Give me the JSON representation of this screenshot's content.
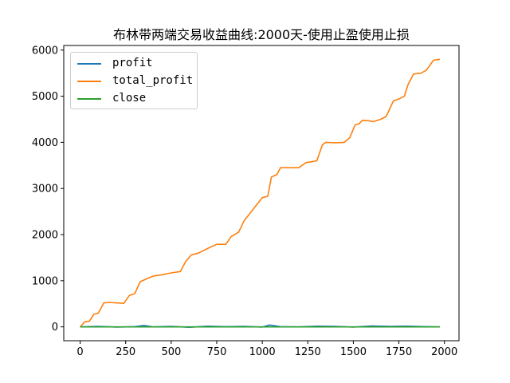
{
  "chart_data": {
    "type": "line",
    "title": "布林带两端交易收益曲线:2000天-使用止盈使用止损",
    "xlabel": "",
    "ylabel": "",
    "xlim": [
      -90,
      2080
    ],
    "ylim": [
      -300,
      6100
    ],
    "xticks": [
      0,
      250,
      500,
      750,
      1000,
      1250,
      1500,
      1750,
      2000
    ],
    "yticks": [
      0,
      1000,
      2000,
      3000,
      4000,
      5000,
      6000
    ],
    "grid": false,
    "legend_position": "top-left",
    "series": [
      {
        "name": "profit",
        "color": "#1f77b4",
        "x": [
          0,
          100,
          200,
          300,
          350,
          400,
          500,
          600,
          700,
          800,
          900,
          1000,
          1040,
          1100,
          1200,
          1300,
          1400,
          1500,
          1600,
          1700,
          1800,
          1900,
          1975
        ],
        "y": [
          0,
          10,
          -5,
          5,
          30,
          0,
          10,
          -10,
          15,
          5,
          10,
          -5,
          40,
          5,
          0,
          15,
          10,
          -5,
          20,
          10,
          15,
          5,
          0
        ]
      },
      {
        "name": "total_profit",
        "color": "#ff7f0e",
        "x": [
          0,
          25,
          50,
          75,
          100,
          130,
          160,
          200,
          240,
          270,
          300,
          330,
          370,
          400,
          450,
          500,
          550,
          580,
          610,
          650,
          700,
          750,
          800,
          830,
          870,
          900,
          940,
          960,
          1000,
          1030,
          1050,
          1080,
          1100,
          1150,
          1200,
          1240,
          1270,
          1300,
          1330,
          1350,
          1400,
          1450,
          1480,
          1510,
          1530,
          1550,
          1580,
          1610,
          1650,
          1680,
          1720,
          1750,
          1780,
          1800,
          1830,
          1870,
          1900,
          1940,
          1975
        ],
        "y": [
          0,
          110,
          120,
          270,
          300,
          520,
          530,
          520,
          510,
          680,
          720,
          980,
          1050,
          1100,
          1130,
          1170,
          1200,
          1420,
          1560,
          1600,
          1700,
          1790,
          1790,
          1960,
          2050,
          2300,
          2500,
          2600,
          2800,
          2830,
          3250,
          3300,
          3450,
          3450,
          3450,
          3560,
          3580,
          3600,
          3950,
          4000,
          3990,
          4000,
          4100,
          4380,
          4400,
          4480,
          4470,
          4450,
          4500,
          4560,
          4900,
          4940,
          5000,
          5250,
          5480,
          5500,
          5560,
          5780,
          5800
        ]
      },
      {
        "name": "close",
        "color": "#2ca02c",
        "x": [
          0,
          200,
          400,
          600,
          800,
          1000,
          1200,
          1400,
          1600,
          1800,
          1975
        ],
        "y": [
          0,
          0,
          0,
          0,
          0,
          0,
          0,
          0,
          0,
          0,
          0
        ]
      }
    ]
  }
}
